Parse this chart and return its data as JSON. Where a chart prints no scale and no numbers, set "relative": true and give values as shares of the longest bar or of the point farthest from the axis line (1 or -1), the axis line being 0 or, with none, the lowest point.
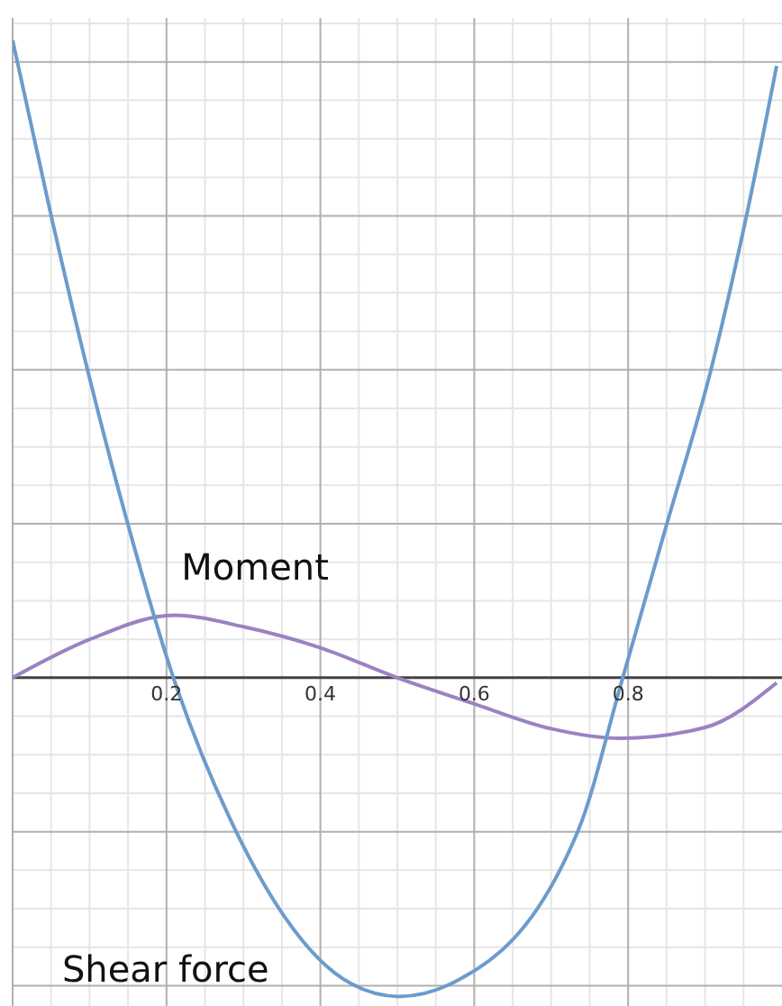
{
  "chart_data": {
    "type": "line",
    "relative": true,
    "xlim": [
      0,
      1
    ],
    "xticks": [
      0.2,
      0.4,
      0.6,
      0.8
    ],
    "grid": true,
    "marker": "none",
    "line_style": "solid",
    "series": [
      {
        "name": "Moment",
        "color": "#9b82c2",
        "x": [
          0,
          0.1,
          0.21,
          0.3,
          0.4,
          0.5,
          0.6,
          0.7,
          0.79,
          0.9,
          0.993
        ],
        "values": [
          0,
          0.06,
          0.098,
          0.08,
          0.047,
          0,
          -0.041,
          -0.08,
          -0.095,
          -0.078,
          -0.008
        ]
      },
      {
        "name": "Shear force",
        "color": "#6b9ccb",
        "x": [
          0,
          0.051,
          0.098,
          0.15,
          0.209,
          0.29,
          0.44,
          0.502,
          0.57,
          0.735,
          0.793,
          0.85,
          0.907,
          0.953,
          0.993
        ],
        "values": [
          1,
          0.72,
          0.48,
          0.24,
          0,
          -0.24,
          -0.48,
          -0.5,
          -0.48,
          -0.24,
          0,
          0.24,
          0.48,
          0.72,
          0.96
        ]
      }
    ]
  }
}
